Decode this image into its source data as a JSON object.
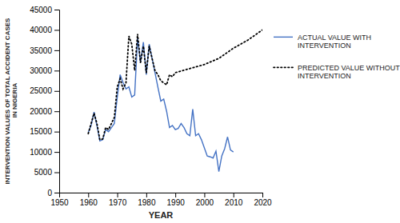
{
  "chart_data": {
    "type": "line",
    "xlabel": "YEAR",
    "ylabel": "INTERVENTION VALUES OF TOTAL  ACCIDENT CASES\n IN NIGERIA",
    "xlim": [
      1950,
      2020
    ],
    "ylim": [
      0,
      45000
    ],
    "xticks": [
      1950,
      1960,
      1970,
      1980,
      1990,
      2000,
      2010,
      2020
    ],
    "yticks": [
      0,
      5000,
      10000,
      15000,
      20000,
      25000,
      30000,
      35000,
      40000,
      45000
    ],
    "grid": false,
    "legend": "right",
    "series": [
      {
        "name": "ACTUAL VALUE WITH\nINTERVENTION",
        "color": "#4472C4",
        "line_style": "solid",
        "x": [
          1960,
          1961,
          1962,
          1963,
          1964,
          1965,
          1966,
          1967,
          1968,
          1969,
          1970,
          1971,
          1972,
          1973,
          1974,
          1975,
          1976,
          1977,
          1978,
          1979,
          1980,
          1981,
          1982,
          1983,
          1984,
          1985,
          1986,
          1987,
          1988,
          1989,
          1990,
          1991,
          1992,
          1993,
          1994,
          1995,
          1996,
          1997,
          1998,
          1999,
          2000,
          2001,
          2002,
          2003,
          2004,
          2005,
          2006,
          2007,
          2008,
          2009,
          2010
        ],
        "values": [
          14800,
          16500,
          19800,
          16500,
          12700,
          13000,
          15500,
          15000,
          16000,
          17000,
          23500,
          29000,
          27000,
          25500,
          26000,
          23500,
          24000,
          38000,
          32000,
          37000,
          29000,
          36500,
          33000,
          29500,
          25900,
          22500,
          23000,
          20000,
          16000,
          16500,
          15500,
          15800,
          17000,
          16000,
          14500,
          14000,
          20500,
          14000,
          14500,
          13000,
          11000,
          9000,
          8800,
          8500,
          10200,
          5200,
          9000,
          10800,
          13700,
          10500,
          10000
        ]
      },
      {
        "name": "PREDICTED VALUE WITHOUT\nINTERVENTION",
        "color": "black",
        "line_style": "dotted",
        "x": [
          1960,
          1961,
          1962,
          1963,
          1964,
          1965,
          1966,
          1967,
          1968,
          1969,
          1970,
          1971,
          1972,
          1973,
          1974,
          1975,
          1976,
          1977,
          1978,
          1979,
          1980,
          1981,
          1982,
          1983,
          1984,
          1985,
          1986,
          1987,
          1988,
          1989,
          1990,
          1995,
          2000,
          2005,
          2010,
          2015,
          2020
        ],
        "values": [
          14500,
          17000,
          19500,
          17000,
          13000,
          13200,
          16000,
          15500,
          17000,
          18500,
          26000,
          28000,
          25500,
          27000,
          38500,
          36500,
          30000,
          39000,
          32000,
          36000,
          29500,
          36000,
          33000,
          30000,
          29000,
          27500,
          27000,
          26500,
          29000,
          28500,
          29500,
          30500,
          31500,
          33000,
          35500,
          37500,
          40000
        ]
      }
    ]
  }
}
